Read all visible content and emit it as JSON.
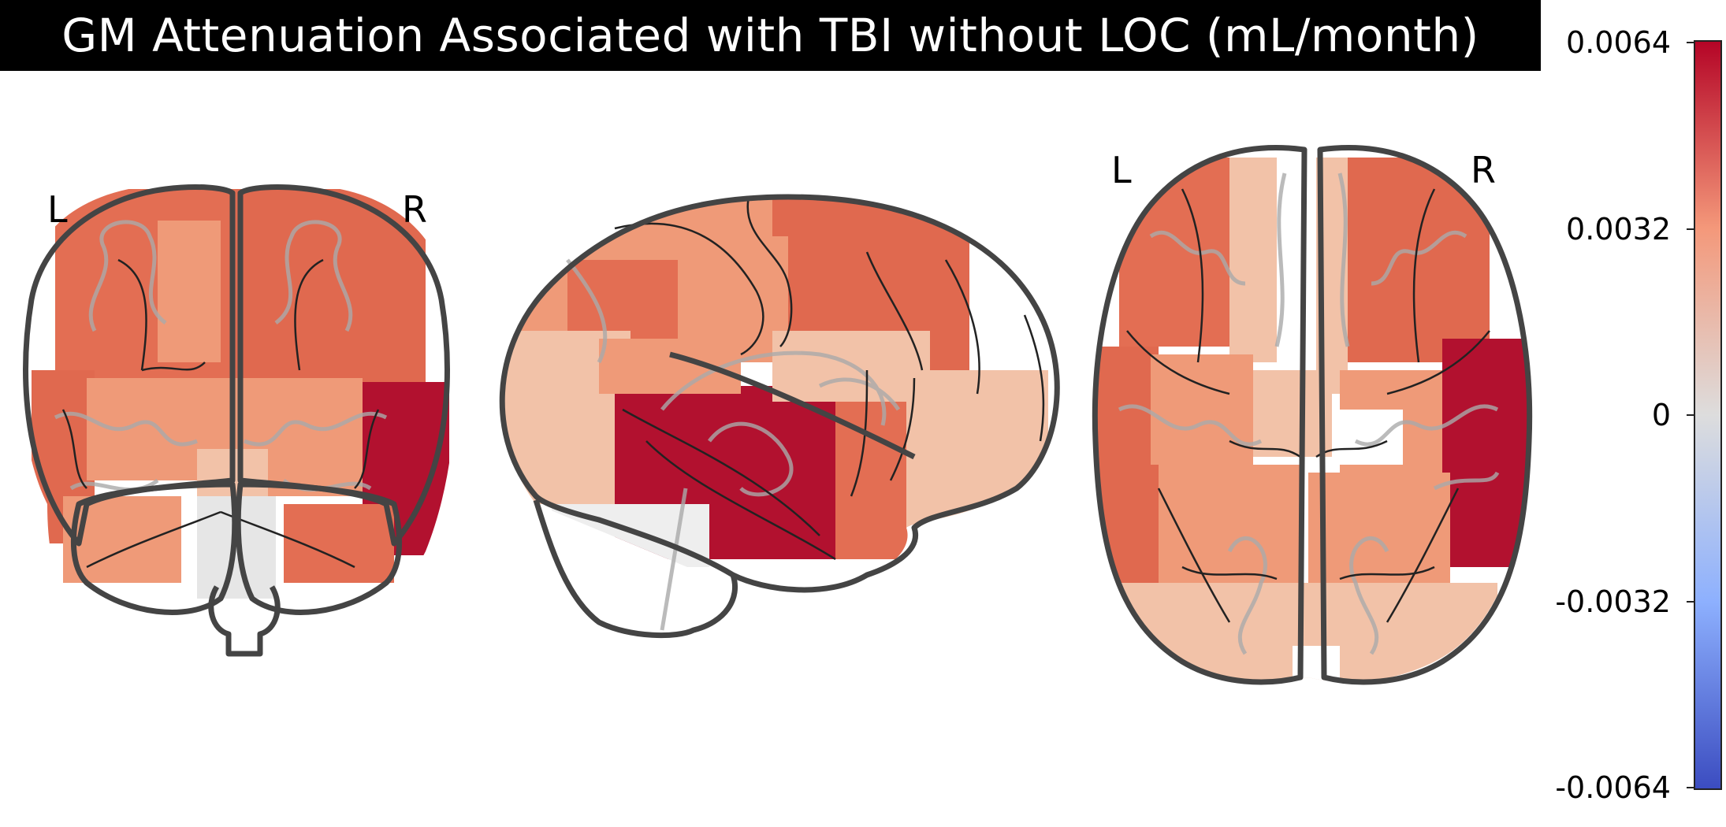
{
  "title": "GM Attenuation Associated with TBI without LOC (mL/month)",
  "views": {
    "coronal": {
      "left_label": "L",
      "right_label": "R"
    },
    "sagittal": {},
    "axial": {
      "left_label": "L",
      "right_label": "R"
    }
  },
  "colorbar": {
    "ticks": [
      "0.0064",
      "0.0032",
      "0",
      "-0.0032",
      "-0.0064"
    ],
    "range": [
      -0.0064,
      0.0064
    ],
    "colormap": "coolwarm",
    "colors": {
      "low": "#3b4cc0",
      "mid": "#dddddd",
      "high": "#b40426"
    }
  },
  "colors": {
    "strong": "#b2112f",
    "medium": "#e0694f",
    "light": "#ef9a78",
    "pale": "#f2c2a8",
    "outline": "#444444",
    "gyri": "#aaaaaa"
  }
}
